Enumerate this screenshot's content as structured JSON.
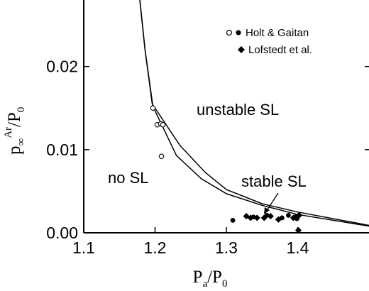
{
  "chart_data": {
    "type": "scatter",
    "xlabel": {
      "main": "P",
      "sub1": "a",
      "slash": "/P",
      "sub2": "0"
    },
    "ylabel": {
      "main": "p",
      "sub1": "∞",
      "sup": "Ar",
      "slash": "/P",
      "sub2": "0"
    },
    "xlim": [
      1.1,
      1.5
    ],
    "ylim": [
      0,
      0.03
    ],
    "x_ticks": [
      1.1,
      1.2,
      1.3,
      1.4
    ],
    "x_tick_labels": [
      "1.1",
      "1.2",
      "1.3",
      "1.4"
    ],
    "y_ticks": [
      0,
      0.01,
      0.02
    ],
    "y_tick_labels": [
      "0.00",
      "0.01",
      "0.02"
    ],
    "grid": false,
    "legend_position": "top-right",
    "legend": [
      {
        "label": "Holt & Gaitan",
        "markers": [
          "open-circle",
          "filled-circle"
        ]
      },
      {
        "label": "Lofstedt et al.",
        "markers": [
          "filled-diamond"
        ]
      }
    ],
    "region_labels": [
      "no SL",
      "unstable SL",
      "stable SL"
    ],
    "series": [
      {
        "kind": "line",
        "x": [
          1.175,
          1.186,
          1.196,
          1.235,
          1.27,
          1.3,
          1.35,
          1.4,
          1.45,
          1.5
        ],
        "y": [
          0.031,
          0.022,
          0.0155,
          0.0105,
          0.0073,
          0.0052,
          0.0035,
          0.0025,
          0.0017,
          0.0009
        ]
      },
      {
        "kind": "line",
        "x": [
          1.175,
          1.186,
          1.197,
          1.23,
          1.265,
          1.3,
          1.35,
          1.4,
          1.45,
          1.5
        ],
        "y": [
          0.031,
          0.022,
          0.0152,
          0.0093,
          0.0065,
          0.0047,
          0.0033,
          0.0022,
          0.0015,
          0.0008
        ]
      },
      {
        "kind": "scatter",
        "marker": "open-circle",
        "x": [
          1.197,
          1.203,
          1.208,
          1.211,
          1.209
        ],
        "y": [
          0.015,
          0.013,
          0.0131,
          0.013,
          0.0092
        ]
      },
      {
        "kind": "scatter",
        "marker": "filled-circle",
        "x": [
          1.309,
          1.338,
          1.357,
          1.378,
          1.387,
          1.399
        ],
        "y": [
          0.0015,
          0.0019,
          0.0021,
          0.0018,
          0.0021,
          0.0017
        ]
      },
      {
        "kind": "scatter",
        "marker": "filled-diamond",
        "x": [
          1.328,
          1.334,
          1.343,
          1.353,
          1.362,
          1.373,
          1.394,
          1.397,
          1.402,
          1.401
        ],
        "y": [
          0.002,
          0.0018,
          0.0018,
          0.0018,
          0.002,
          0.0016,
          0.0018,
          0.0019,
          0.0021,
          0.0003
        ]
      }
    ]
  }
}
